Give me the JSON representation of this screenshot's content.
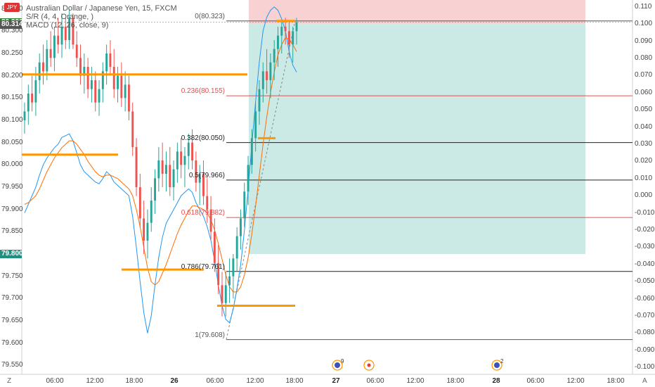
{
  "header": {
    "flag_label": "JPY",
    "symbol_line": "Australian Dollar / Japanese Yen, 15, FXCM",
    "sr_line": "S/R (4, 4, Orange, )",
    "macd_line": "MACD (12, 26, close, 9)"
  },
  "price_axis": {
    "ticks": [
      {
        "label": "80.350",
        "v": 80.35
      },
      {
        "label": "80.300",
        "v": 80.3
      },
      {
        "label": "80.250",
        "v": 80.25
      },
      {
        "label": "80.200",
        "v": 80.2
      },
      {
        "label": "80.150",
        "v": 80.15
      },
      {
        "label": "80.100",
        "v": 80.1
      },
      {
        "label": "80.050",
        "v": 80.05
      },
      {
        "label": "80.000",
        "v": 80.0
      },
      {
        "label": "79.950",
        "v": 79.95
      },
      {
        "label": "79.900",
        "v": 79.9
      },
      {
        "label": "79.850",
        "v": 79.85
      },
      {
        "label": "79.750",
        "v": 79.75
      },
      {
        "label": "79.700",
        "v": 79.7
      },
      {
        "label": "79.650",
        "v": 79.65
      },
      {
        "label": "79.600",
        "v": 79.6
      },
      {
        "label": "79.550",
        "v": 79.55
      }
    ],
    "markers": [
      {
        "label": "80.390",
        "v": 80.39,
        "color": "#e05050"
      },
      {
        "label": "80.320",
        "v": 80.32,
        "color": "#2e7d32"
      },
      {
        "label": "80.314",
        "v": 80.314,
        "color": "#555555"
      },
      {
        "label": "79.800",
        "v": 79.8,
        "color": "#1f8f80"
      }
    ]
  },
  "macd_axis": {
    "ticks": [
      "0.110",
      "0.100",
      "0.090",
      "0.080",
      "0.070",
      "0.060",
      "0.050",
      "0.040",
      "0.030",
      "0.020",
      "0.010",
      "0.000",
      "-0.010",
      "-0.020",
      "-0.030",
      "-0.040",
      "-0.050",
      "-0.060",
      "-0.070",
      "-0.080",
      "-0.090",
      "-0.100"
    ]
  },
  "time_axis": {
    "ticks": [
      {
        "label": "06:00",
        "bold": false
      },
      {
        "label": "12:00",
        "bold": false
      },
      {
        "label": "18:00",
        "bold": false
      },
      {
        "label": "26",
        "bold": true
      },
      {
        "label": "06:00",
        "bold": false
      },
      {
        "label": "12:00",
        "bold": false
      },
      {
        "label": "18:00",
        "bold": false
      },
      {
        "label": "27",
        "bold": true
      },
      {
        "label": "06:00",
        "bold": false
      },
      {
        "label": "12:00",
        "bold": false
      },
      {
        "label": "18:00",
        "bold": false
      },
      {
        "label": "28",
        "bold": true
      },
      {
        "label": "06:00",
        "bold": false
      },
      {
        "label": "12:00",
        "bold": false
      },
      {
        "label": "18:00",
        "bold": false
      }
    ]
  },
  "corner_labels": {
    "left": "Z",
    "right": "A"
  },
  "fibonacci": [
    {
      "label": "0(80.323)",
      "v": 80.323,
      "color": "#555555"
    },
    {
      "label": "0.236(80.155)",
      "v": 80.155,
      "color": "#e05050"
    },
    {
      "label": "0.382(80.050)",
      "v": 80.05,
      "color": "#222222"
    },
    {
      "label": "0.5(79.966)",
      "v": 79.966,
      "color": "#222222"
    },
    {
      "label": "0.618(79.882)",
      "v": 79.882,
      "color": "#e05050"
    },
    {
      "label": "0.786(79.761)",
      "v": 79.761,
      "color": "#222222"
    },
    {
      "label": "1(79.608)",
      "v": 79.608,
      "color": "#555555"
    }
  ],
  "position": {
    "entry": 80.316,
    "stop": 80.39,
    "target": 79.8,
    "stop_color": "#f6c7c7",
    "target_color": "#bfe5de"
  },
  "sr_levels": [
    {
      "v": 80.203
    },
    {
      "v": 80.023
    },
    {
      "v": 79.765
    },
    {
      "v": 80.06
    },
    {
      "v": 80.323
    },
    {
      "v": 79.684
    }
  ],
  "events": [
    {
      "label": "9",
      "kind": "flag"
    },
    {
      "label": "",
      "kind": "dot"
    },
    {
      "label": "2",
      "kind": "flag"
    }
  ],
  "colors": {
    "up": "#26a69a",
    "down": "#ef5350",
    "sr": "#ff9800",
    "macd": "#2196f3",
    "signal": "#ff6d00"
  },
  "chart_data": {
    "type": "candlestick",
    "title": "Australian Dollar / Japanese Yen, 15, FXCM",
    "ylim": [
      79.53,
      80.37
    ],
    "ohlc": [
      [
        80.1,
        80.14,
        80.07,
        80.12
      ],
      [
        80.12,
        80.18,
        80.09,
        80.16
      ],
      [
        80.16,
        80.2,
        80.12,
        80.14
      ],
      [
        80.14,
        80.22,
        80.11,
        80.19
      ],
      [
        80.19,
        80.25,
        80.16,
        80.23
      ],
      [
        80.23,
        80.27,
        80.18,
        80.21
      ],
      [
        80.21,
        80.28,
        80.19,
        80.26
      ],
      [
        80.26,
        80.3,
        80.22,
        80.24
      ],
      [
        80.24,
        80.31,
        80.21,
        80.29
      ],
      [
        80.29,
        80.33,
        80.25,
        80.27
      ],
      [
        80.27,
        80.34,
        80.24,
        80.31
      ],
      [
        80.31,
        80.33,
        80.26,
        80.28
      ],
      [
        80.28,
        80.35,
        80.26,
        80.33
      ],
      [
        80.33,
        80.34,
        80.26,
        80.27
      ],
      [
        80.27,
        80.3,
        80.22,
        80.24
      ],
      [
        80.24,
        80.27,
        80.18,
        80.2
      ],
      [
        80.2,
        80.25,
        80.16,
        80.22
      ],
      [
        80.22,
        80.24,
        80.15,
        80.17
      ],
      [
        80.17,
        80.22,
        80.14,
        80.19
      ],
      [
        80.19,
        80.21,
        80.12,
        80.14
      ],
      [
        80.14,
        80.19,
        80.11,
        80.17
      ],
      [
        80.17,
        80.23,
        80.14,
        80.21
      ],
      [
        80.21,
        80.27,
        80.18,
        80.25
      ],
      [
        80.25,
        80.28,
        80.2,
        80.22
      ],
      [
        80.22,
        80.26,
        80.15,
        80.17
      ],
      [
        80.17,
        80.22,
        80.14,
        80.2
      ],
      [
        80.2,
        80.23,
        80.13,
        80.15
      ],
      [
        80.15,
        80.21,
        80.12,
        80.18
      ],
      [
        80.18,
        80.2,
        80.1,
        80.12
      ],
      [
        80.12,
        80.14,
        80.02,
        80.04
      ],
      [
        80.04,
        80.06,
        79.93,
        79.95
      ],
      [
        79.95,
        79.98,
        79.86,
        79.88
      ],
      [
        79.88,
        79.92,
        79.8,
        79.83
      ],
      [
        79.83,
        79.9,
        79.79,
        79.87
      ],
      [
        79.87,
        79.95,
        79.85,
        79.92
      ],
      [
        79.92,
        79.99,
        79.89,
        79.97
      ],
      [
        79.97,
        80.04,
        79.94,
        80.01
      ],
      [
        80.01,
        80.05,
        79.95,
        79.98
      ],
      [
        79.98,
        80.03,
        79.94,
        80.0
      ],
      [
        80.0,
        80.04,
        79.93,
        79.95
      ],
      [
        79.95,
        80.01,
        79.92,
        79.99
      ],
      [
        79.99,
        80.05,
        79.96,
        80.03
      ],
      [
        80.03,
        80.06,
        79.97,
        80.0
      ],
      [
        80.0,
        80.04,
        79.95,
        80.02
      ],
      [
        80.02,
        80.07,
        79.99,
        80.05
      ],
      [
        80.05,
        80.08,
        79.99,
        80.01
      ],
      [
        80.01,
        80.03,
        79.94,
        79.96
      ],
      [
        79.96,
        80.0,
        79.91,
        79.98
      ],
      [
        79.98,
        80.01,
        79.91,
        79.93
      ],
      [
        79.93,
        79.97,
        79.87,
        79.9
      ],
      [
        79.9,
        79.93,
        79.83,
        79.85
      ],
      [
        79.85,
        79.88,
        79.76,
        79.78
      ],
      [
        79.78,
        79.82,
        79.71,
        79.73
      ],
      [
        79.73,
        79.76,
        79.66,
        79.69
      ],
      [
        79.69,
        79.76,
        79.66,
        79.73
      ],
      [
        79.73,
        79.79,
        79.69,
        79.75
      ],
      [
        79.75,
        79.8,
        79.7,
        79.79
      ],
      [
        79.79,
        79.86,
        79.76,
        79.84
      ],
      [
        79.84,
        79.9,
        79.81,
        79.88
      ],
      [
        79.88,
        79.96,
        79.86,
        79.94
      ],
      [
        79.94,
        80.02,
        79.91,
        80.0
      ],
      [
        80.0,
        80.08,
        79.98,
        80.06
      ],
      [
        80.06,
        80.14,
        80.03,
        80.12
      ],
      [
        80.12,
        80.19,
        80.09,
        80.17
      ],
      [
        80.17,
        80.23,
        80.14,
        80.21
      ],
      [
        80.21,
        80.26,
        80.16,
        80.19
      ],
      [
        80.19,
        80.25,
        80.15,
        80.23
      ],
      [
        80.23,
        80.28,
        80.19,
        80.26
      ],
      [
        80.26,
        80.31,
        80.22,
        80.29
      ],
      [
        80.29,
        80.32,
        80.25,
        80.31
      ],
      [
        80.31,
        80.33,
        80.27,
        80.3
      ],
      [
        80.3,
        80.32,
        80.24,
        80.27
      ],
      [
        80.27,
        80.31,
        80.23,
        80.3
      ],
      [
        80.3,
        80.33,
        80.27,
        80.32
      ]
    ],
    "macd": [
      -0.01,
      -0.005,
      0.0,
      0.005,
      0.012,
      0.018,
      0.022,
      0.025,
      0.028,
      0.03,
      0.034,
      0.035,
      0.036,
      0.032,
      0.025,
      0.018,
      0.014,
      0.012,
      0.01,
      0.008,
      0.007,
      0.01,
      0.014,
      0.012,
      0.008,
      0.006,
      0.004,
      0.002,
      0.0,
      -0.012,
      -0.03,
      -0.05,
      -0.068,
      -0.08,
      -0.07,
      -0.052,
      -0.036,
      -0.024,
      -0.016,
      -0.012,
      -0.008,
      -0.004,
      0.0,
      0.002,
      0.004,
      0.002,
      -0.004,
      -0.008,
      -0.012,
      -0.018,
      -0.026,
      -0.038,
      -0.052,
      -0.064,
      -0.072,
      -0.074,
      -0.066,
      -0.054,
      -0.04,
      -0.02,
      0.004,
      0.03,
      0.055,
      0.078,
      0.096,
      0.104,
      0.108,
      0.11,
      0.108,
      0.103,
      0.096,
      0.084,
      0.076,
      0.072
    ],
    "signal": [
      -0.005,
      -0.004,
      -0.002,
      0.0,
      0.004,
      0.009,
      0.014,
      0.018,
      0.022,
      0.025,
      0.028,
      0.03,
      0.032,
      0.032,
      0.03,
      0.027,
      0.024,
      0.02,
      0.017,
      0.014,
      0.012,
      0.011,
      0.012,
      0.012,
      0.011,
      0.01,
      0.008,
      0.006,
      0.004,
      0.0,
      -0.008,
      -0.018,
      -0.03,
      -0.042,
      -0.05,
      -0.052,
      -0.05,
      -0.045,
      -0.04,
      -0.034,
      -0.028,
      -0.022,
      -0.017,
      -0.013,
      -0.009,
      -0.006,
      -0.006,
      -0.007,
      -0.008,
      -0.01,
      -0.014,
      -0.02,
      -0.028,
      -0.037,
      -0.046,
      -0.053,
      -0.056,
      -0.056,
      -0.053,
      -0.046,
      -0.036,
      -0.022,
      -0.006,
      0.012,
      0.03,
      0.046,
      0.06,
      0.072,
      0.082,
      0.088,
      0.092,
      0.091,
      0.088,
      0.084
    ]
  }
}
